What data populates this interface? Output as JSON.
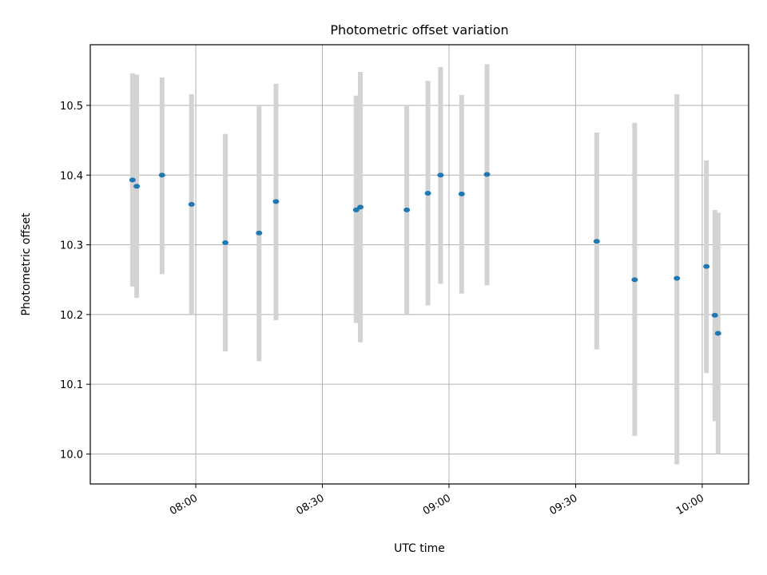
{
  "chart_data": {
    "type": "scatter",
    "title": "Photometric offset variation",
    "xlabel": "UTC time",
    "ylabel": "Photometric offset",
    "xlim": [
      "07:35",
      "10:11"
    ],
    "ylim": [
      9.957,
      10.587
    ],
    "x_ticks": [
      "08:00",
      "08:30",
      "09:00",
      "09:30",
      "10:00"
    ],
    "y_ticks": [
      "10.0",
      "10.1",
      "10.2",
      "10.3",
      "10.4",
      "10.5"
    ],
    "grid": true,
    "error_bar_color": "#d3d3d3",
    "marker_color": "#1f77b4",
    "series": [
      {
        "points": [
          {
            "x": "07:45",
            "y": 10.393,
            "err_low": 10.24,
            "err_high": 10.546
          },
          {
            "x": "07:46",
            "y": 10.384,
            "err_low": 10.224,
            "err_high": 10.544
          },
          {
            "x": "07:52",
            "y": 10.4,
            "err_low": 10.258,
            "err_high": 10.54
          },
          {
            "x": "07:59",
            "y": 10.358,
            "err_low": 10.2,
            "err_high": 10.516
          },
          {
            "x": "08:07",
            "y": 10.303,
            "err_low": 10.147,
            "err_high": 10.459
          },
          {
            "x": "08:15",
            "y": 10.317,
            "err_low": 10.133,
            "err_high": 10.5
          },
          {
            "x": "08:19",
            "y": 10.362,
            "err_low": 10.192,
            "err_high": 10.531
          },
          {
            "x": "08:38",
            "y": 10.35,
            "err_low": 10.188,
            "err_high": 10.514
          },
          {
            "x": "08:39",
            "y": 10.354,
            "err_low": 10.16,
            "err_high": 10.548
          },
          {
            "x": "08:50",
            "y": 10.35,
            "err_low": 10.2,
            "err_high": 10.501
          },
          {
            "x": "08:55",
            "y": 10.374,
            "err_low": 10.213,
            "err_high": 10.535
          },
          {
            "x": "08:58",
            "y": 10.4,
            "err_low": 10.244,
            "err_high": 10.555
          },
          {
            "x": "09:03",
            "y": 10.373,
            "err_low": 10.23,
            "err_high": 10.515
          },
          {
            "x": "09:09",
            "y": 10.401,
            "err_low": 10.242,
            "err_high": 10.559
          },
          {
            "x": "09:35",
            "y": 10.305,
            "err_low": 10.15,
            "err_high": 10.461
          },
          {
            "x": "09:44",
            "y": 10.25,
            "err_low": 10.026,
            "err_high": 10.475
          },
          {
            "x": "09:54",
            "y": 10.252,
            "err_low": 9.985,
            "err_high": 10.516
          },
          {
            "x": "10:01",
            "y": 10.269,
            "err_low": 10.116,
            "err_high": 10.421
          },
          {
            "x": "10:03",
            "y": 10.199,
            "err_low": 10.047,
            "err_high": 10.35
          },
          {
            "x": "10:03",
            "y": 10.173,
            "err_low": 10.0,
            "err_high": 10.346
          }
        ]
      }
    ]
  }
}
